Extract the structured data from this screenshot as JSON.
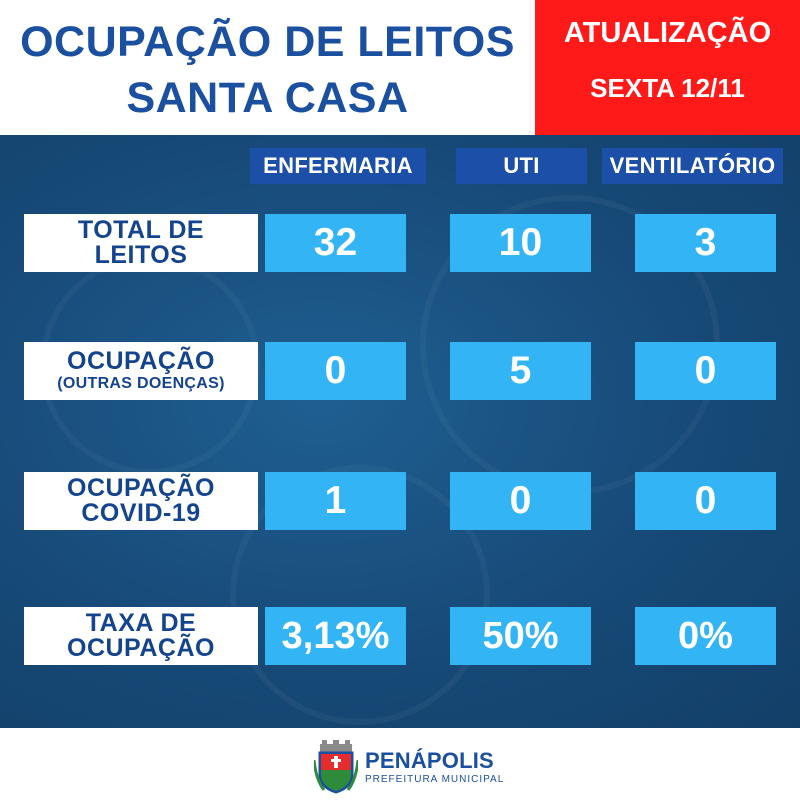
{
  "header": {
    "title_line1": "OCUPAÇÃO DE LEITOS",
    "title_line2": "SANTA CASA",
    "update_label": "ATUALIZAÇÃO",
    "update_date": "SEXTA 12/11"
  },
  "columns": [
    "ENFERMARIA",
    "UTI",
    "VENTILATÓRIO"
  ],
  "rows": [
    {
      "label_line1": "TOTAL DE",
      "label_line2": "LEITOS",
      "values": [
        "32",
        "10",
        "3"
      ]
    },
    {
      "label_line1": "OCUPAÇÃO",
      "label_line2": "(OUTRAS DOENÇAS)",
      "values": [
        "0",
        "5",
        "0"
      ]
    },
    {
      "label_line1": "OCUPAÇÃO",
      "label_line2": "COVID-19",
      "values": [
        "1",
        "0",
        "0"
      ]
    },
    {
      "label_line1": "TAXA DE",
      "label_line2": "OCUPAÇÃO",
      "values": [
        "3,13%",
        "50%",
        "0%"
      ]
    }
  ],
  "footer": {
    "brand": "PENÁPOLIS",
    "subtitle": "PREFEITURA MUNICIPAL"
  },
  "colors": {
    "title_blue": "#1b4fa0",
    "update_red": "#ff1a1a",
    "panel_blue": "#174a78",
    "column_header_blue": "#1c4fa8",
    "cell_cyan": "#33b5f5",
    "label_text_blue": "#15448f"
  },
  "icons": {
    "crest": "penapolis-crest-icon"
  }
}
